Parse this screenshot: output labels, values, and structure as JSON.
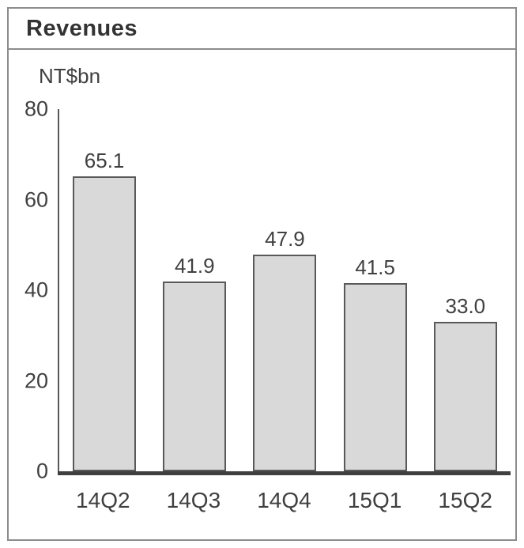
{
  "chart_data": {
    "type": "bar",
    "title": "Revenues",
    "unit_label": "NT$bn",
    "categories": [
      "14Q2",
      "14Q3",
      "14Q4",
      "15Q1",
      "15Q2"
    ],
    "values": [
      65.1,
      41.9,
      47.9,
      41.5,
      33.0
    ],
    "value_labels": [
      "65.1",
      "41.9",
      "47.9",
      "41.5",
      "33.0"
    ],
    "ylim": [
      0,
      80
    ],
    "yticks": [
      0,
      20,
      40,
      60,
      80
    ],
    "grid": "off",
    "legend": "none",
    "colors": {
      "bar_fill": "#d9d9d9",
      "bar_border": "#595959",
      "axis_line": "#3f3f3f",
      "frame_border": "#8c8c8c",
      "text": "#404040"
    }
  }
}
